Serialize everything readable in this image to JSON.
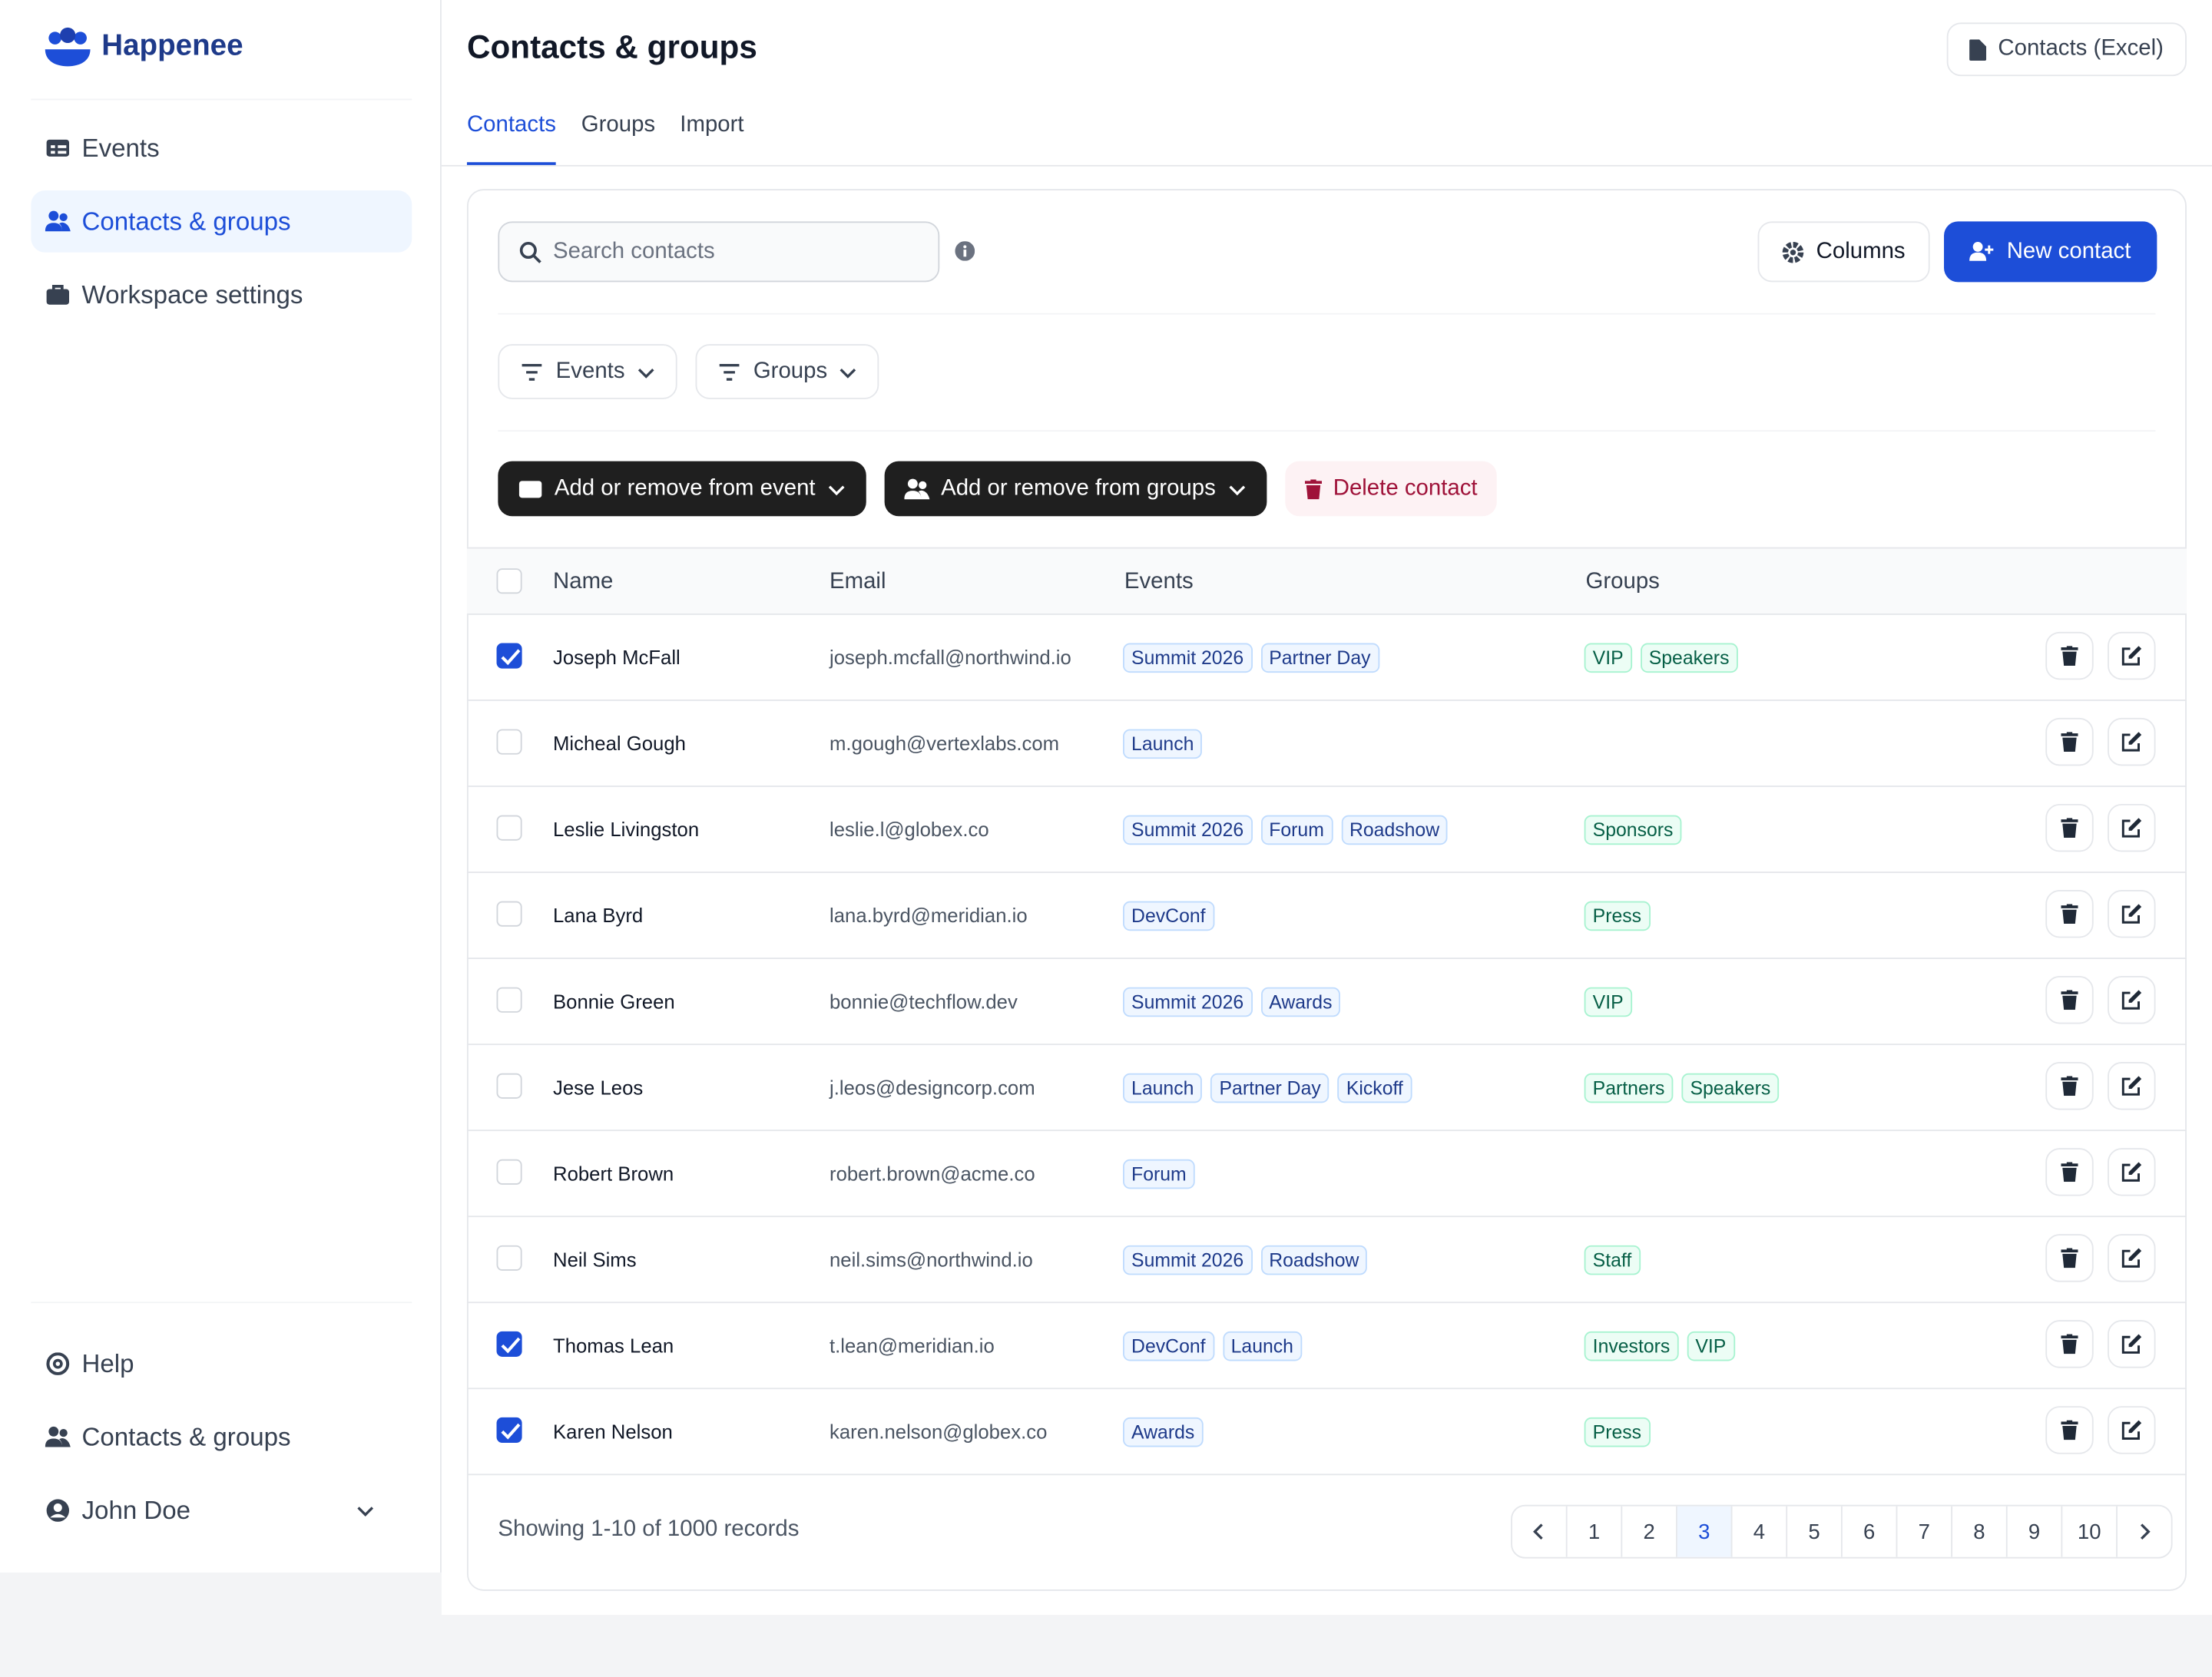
{
  "sidebar": {
    "brand": "Happenee",
    "nav": [
      "Events",
      "Contacts & groups",
      "Workspace settings"
    ],
    "active_nav": 1,
    "footer": [
      "Help",
      "Contacts & groups"
    ],
    "user": "John Doe"
  },
  "header": {
    "title": "Contacts & groups",
    "export_button": "Contacts (Excel)",
    "tabs": [
      "Contacts",
      "Groups",
      "Import"
    ],
    "active_tab": 0
  },
  "toolbar": {
    "search_placeholder": "Search contacts",
    "columns_button": "Columns",
    "new_button": "New contact",
    "filters": [
      "Events",
      "Groups"
    ],
    "actions": [
      "Add or remove from event",
      "Add or remove from groups",
      "Delete contact"
    ]
  },
  "table": {
    "columns": [
      "Name",
      "Email",
      "Events",
      "Groups"
    ],
    "rows": [
      {
        "name": "Joseph McFall",
        "email": "joseph.mcfall@northwind.io",
        "events": [
          "Summit 2026",
          "Partner Day"
        ],
        "groups": [
          "VIP",
          "Speakers"
        ],
        "selected": true
      },
      {
        "name": "Micheal Gough",
        "email": "m.gough@vertexlabs.com",
        "events": [
          "Launch"
        ],
        "groups": [],
        "selected": false
      },
      {
        "name": "Leslie Livingston",
        "email": "leslie.l@globex.co",
        "events": [
          "Summit 2026",
          "Forum",
          "Roadshow"
        ],
        "groups": [
          "Sponsors"
        ],
        "selected": false
      },
      {
        "name": "Lana Byrd",
        "email": "lana.byrd@meridian.io",
        "events": [
          "DevConf"
        ],
        "groups": [
          "Press"
        ],
        "selected": false
      },
      {
        "name": "Bonnie Green",
        "email": "bonnie@techflow.dev",
        "events": [
          "Summit 2026",
          "Awards"
        ],
        "groups": [
          "VIP"
        ],
        "selected": false
      },
      {
        "name": "Jese Leos",
        "email": "j.leos@designcorp.com",
        "events": [
          "Launch",
          "Partner Day",
          "Kickoff"
        ],
        "groups": [
          "Partners",
          "Speakers"
        ],
        "selected": false
      },
      {
        "name": "Robert Brown",
        "email": "robert.brown@acme.co",
        "events": [
          "Forum"
        ],
        "groups": [],
        "selected": false
      },
      {
        "name": "Neil Sims",
        "email": "neil.sims@northwind.io",
        "events": [
          "Summit 2026",
          "Roadshow"
        ],
        "groups": [
          "Staff"
        ],
        "selected": false
      },
      {
        "name": "Thomas Lean",
        "email": "t.lean@meridian.io",
        "events": [
          "DevConf",
          "Launch"
        ],
        "groups": [
          "Investors",
          "VIP"
        ],
        "selected": true
      },
      {
        "name": "Karen Nelson",
        "email": "karen.nelson@globex.co",
        "events": [
          "Awards"
        ],
        "groups": [
          "Press"
        ],
        "selected": true
      }
    ]
  },
  "pagination": {
    "summary": "Showing 1-10 of 1000 records",
    "pages": [
      1,
      2,
      3,
      4,
      5,
      6,
      7,
      8,
      9,
      10
    ],
    "current_index": 2
  }
}
